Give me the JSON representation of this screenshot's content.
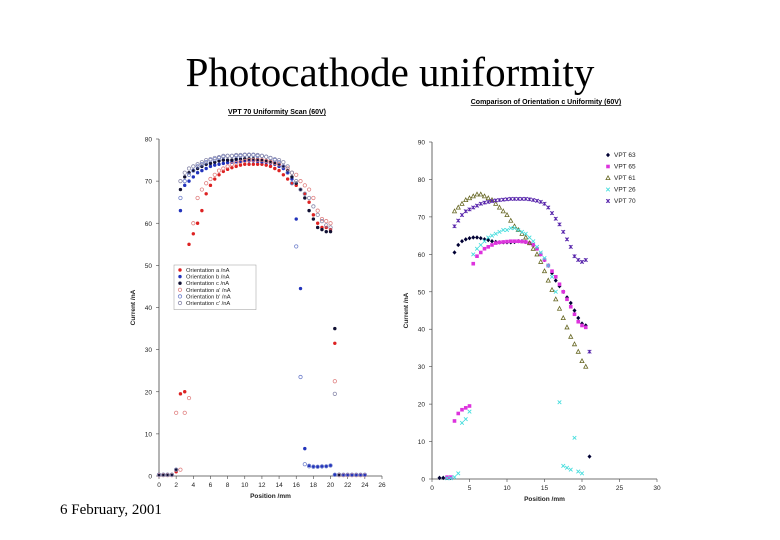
{
  "slide": {
    "title": "Photocathode uniformity",
    "date": "6 February, 2001"
  },
  "chart_data": [
    {
      "type": "scatter",
      "title": "VPT 70 Uniformity Scan (60V)",
      "xlabel": "Position /mm",
      "ylabel": "Current /nA",
      "xlim": [
        0,
        26
      ],
      "ylim": [
        0,
        80
      ],
      "xticks": [
        0,
        2,
        4,
        6,
        8,
        10,
        12,
        14,
        16,
        18,
        20,
        22,
        24,
        26
      ],
      "yticks": [
        0,
        10,
        20,
        30,
        40,
        50,
        60,
        70,
        80
      ],
      "grid": false,
      "legend_position": "middle-left",
      "series": [
        {
          "name": "Orientation a /nA",
          "color": "#dd2222",
          "marker": "dot",
          "x": [
            0,
            0.5,
            1,
            1.5,
            2,
            2.5,
            3,
            3.5,
            4,
            4.5,
            5,
            5.5,
            6,
            6.5,
            7,
            7.5,
            8,
            8.5,
            9,
            9.5,
            10,
            10.5,
            11,
            11.5,
            12,
            12.5,
            13,
            13.5,
            14,
            14.5,
            15,
            15.5,
            16,
            16.5,
            17,
            17.5,
            18,
            18.5,
            19,
            19.5,
            20,
            20.5,
            21,
            21.5,
            22,
            22.5,
            23,
            23.5,
            24
          ],
          "y": [
            0.3,
            0.3,
            0.3,
            0.3,
            1,
            19.5,
            20,
            55,
            57.5,
            60,
            63,
            67,
            69,
            70.5,
            71.5,
            72.3,
            72.8,
            73.2,
            73.5,
            73.8,
            74,
            74,
            74,
            74,
            74,
            73.8,
            73.5,
            73,
            72.5,
            71.5,
            70.5,
            69.5,
            69,
            68,
            67,
            65,
            62,
            60,
            59,
            59,
            58.5,
            31.5,
            0.2,
            0.2,
            0.2,
            0.2,
            0.2,
            0.2,
            0.2
          ]
        },
        {
          "name": "Orientation b /nA",
          "color": "#2233bb",
          "marker": "dot",
          "x": [
            0,
            0.5,
            1,
            1.5,
            2,
            2.5,
            3,
            3.5,
            4,
            4.5,
            5,
            5.5,
            6,
            6.5,
            7,
            7.5,
            8,
            8.5,
            9,
            9.5,
            10,
            10.5,
            11,
            11.5,
            12,
            12.5,
            13,
            13.5,
            14,
            14.5,
            15,
            15.5,
            16,
            16.5,
            17,
            17.5,
            18,
            18.5,
            19,
            19.5,
            20,
            20.5,
            21,
            21.5,
            22,
            22.5,
            23,
            23.5,
            24
          ],
          "y": [
            0.3,
            0.3,
            0.3,
            0.3,
            1.5,
            63,
            69,
            70,
            71,
            72,
            72.5,
            73,
            73.5,
            73.8,
            74,
            74.2,
            74.4,
            74.5,
            74.6,
            74.7,
            74.8,
            74.8,
            74.8,
            74.7,
            74.6,
            74.5,
            74.3,
            74,
            73.5,
            73,
            72,
            70.5,
            61,
            44.5,
            6.5,
            2.5,
            2.3,
            2.2,
            2.2,
            2.3,
            2.5,
            0.3,
            0.3,
            0.3,
            0.3,
            0.3,
            0.3,
            0.3,
            0.3
          ]
        },
        {
          "name": "Orientation c /nA",
          "color": "#111133",
          "marker": "dot",
          "x": [
            0,
            0.5,
            1,
            1.5,
            2,
            2.5,
            3,
            3.5,
            4,
            4.5,
            5,
            5.5,
            6,
            6.5,
            7,
            7.5,
            8,
            8.5,
            9,
            9.5,
            10,
            10.5,
            11,
            11.5,
            12,
            12.5,
            13,
            13.5,
            14,
            14.5,
            15,
            15.5,
            16,
            16.5,
            17,
            17.5,
            18,
            18.5,
            19,
            19.5,
            20,
            20.5,
            21
          ],
          "y": [
            0.3,
            0.3,
            0.3,
            0.3,
            1.5,
            68,
            71,
            72,
            72.5,
            73,
            73.5,
            74,
            74.2,
            74.5,
            74.8,
            75,
            75,
            75,
            75.2,
            75.2,
            75.3,
            75.3,
            75.3,
            75.2,
            75,
            74.8,
            74.5,
            74.2,
            74,
            73.5,
            72.5,
            71,
            69.5,
            68,
            66,
            63,
            61,
            59,
            58.5,
            58,
            58,
            35,
            0.3
          ]
        },
        {
          "name": "Orientation a' /nA",
          "color": "#e08080",
          "marker": "circle",
          "x": [
            0,
            0.5,
            1,
            1.5,
            2,
            2.5,
            3,
            3.5,
            4,
            4.5,
            5,
            5.5,
            6,
            6.5,
            7,
            7.5,
            8,
            8.5,
            9,
            9.5,
            10,
            10.5,
            11,
            11.5,
            12,
            12.5,
            13,
            13.5,
            14,
            14.5,
            15,
            15.5,
            16,
            16.5,
            17,
            17.5,
            18,
            18.5,
            19,
            19.5,
            20,
            20.5,
            21,
            21.5,
            22,
            22.5,
            23,
            23.5,
            24
          ],
          "y": [
            0.2,
            0.2,
            0.2,
            0.2,
            15,
            1.5,
            15,
            18.5,
            60,
            66,
            68,
            69.5,
            70.5,
            71.5,
            72.5,
            73,
            73.5,
            74,
            74.3,
            74.6,
            74.8,
            75,
            75,
            75,
            75,
            74.8,
            74.6,
            74.3,
            74,
            73.5,
            73,
            72,
            71.5,
            70,
            69,
            68,
            66,
            63,
            61,
            60.5,
            60,
            22.5,
            0.2,
            0.2,
            0.2,
            0.2,
            0.2,
            0.2,
            0.2
          ]
        },
        {
          "name": "Orientation b' /nA",
          "color": "#7080cc",
          "marker": "circle",
          "x": [
            0,
            0.5,
            1,
            1.5,
            2,
            2.5,
            3,
            3.5,
            4,
            4.5,
            5,
            5.5,
            6,
            6.5,
            7,
            7.5,
            8,
            8.5,
            9,
            9.5,
            10,
            10.5,
            11,
            11.5,
            12,
            12.5,
            13,
            13.5,
            14,
            14.5,
            15,
            15.5,
            16,
            16.5,
            17,
            17.5,
            18,
            18.5,
            19,
            19.5,
            20,
            20.5,
            21,
            21.5,
            22,
            22.5,
            23,
            23.5,
            24
          ],
          "y": [
            0.3,
            0.3,
            0.3,
            0.3,
            1.5,
            66,
            70,
            71.5,
            72.5,
            73.5,
            74,
            74.5,
            75,
            75.2,
            75.5,
            75.8,
            76,
            76,
            76,
            76,
            76.2,
            76.2,
            76.2,
            76,
            76,
            75.8,
            75.5,
            75,
            74.5,
            73.5,
            72,
            69.5,
            54.5,
            23.5,
            2.8,
            2.3,
            2.2,
            2.2,
            2.3,
            2.3,
            2.5,
            0.3,
            0.3,
            0.3,
            0.3,
            0.3,
            0.3,
            0.3,
            0.3
          ]
        },
        {
          "name": "Orientation c' /nA",
          "color": "#8888aa",
          "marker": "circle",
          "x": [
            0,
            0.5,
            1,
            1.5,
            2,
            2.5,
            3,
            3.5,
            4,
            4.5,
            5,
            5.5,
            6,
            6.5,
            7,
            7.5,
            8,
            8.5,
            9,
            9.5,
            10,
            10.5,
            11,
            11.5,
            12,
            12.5,
            13,
            13.5,
            14,
            14.5,
            15,
            15.5,
            16,
            16.5,
            17,
            17.5,
            18,
            18.5,
            19,
            19.5,
            20,
            20.5,
            21
          ],
          "y": [
            0.3,
            0.3,
            0.3,
            0.3,
            1.5,
            70,
            72,
            73,
            73.5,
            74,
            74.5,
            75,
            75.2,
            75.5,
            75.7,
            76,
            76,
            76,
            76.2,
            76.2,
            76.3,
            76.3,
            76.3,
            76.2,
            76,
            75.8,
            75.5,
            75.2,
            75,
            74.5,
            73.5,
            72,
            70,
            68,
            67,
            66,
            64,
            62,
            60.5,
            59.5,
            59,
            19.5,
            0.3
          ]
        }
      ]
    },
    {
      "type": "scatter",
      "title": "Comparison of Orientation c Uniformity (60V)",
      "xlabel": "Position /mm",
      "ylabel": "Current /nA",
      "xlim": [
        0,
        30
      ],
      "ylim": [
        0,
        90
      ],
      "xticks": [
        0,
        5,
        10,
        15,
        20,
        25,
        30
      ],
      "yticks": [
        0,
        10,
        20,
        30,
        40,
        50,
        60,
        70,
        80,
        90
      ],
      "grid": false,
      "legend_position": "top-right",
      "series": [
        {
          "name": "VPT 63",
          "color": "#000033",
          "marker": "diamond",
          "x": [
            1,
            1.5,
            2,
            2.5,
            3,
            3.5,
            4,
            4.5,
            5,
            5.5,
            6,
            6.5,
            7,
            7.5,
            8,
            8.5,
            9,
            9.5,
            10,
            10.5,
            11,
            11.5,
            12,
            12.5,
            13,
            13.5,
            14,
            14.5,
            15,
            15.5,
            16,
            16.5,
            17,
            17.5,
            18,
            18.5,
            19,
            19.5,
            20,
            20.5,
            21
          ],
          "y": [
            0.3,
            0.3,
            0.3,
            0.3,
            60.5,
            62.5,
            63.5,
            64,
            64.3,
            64.5,
            64.5,
            64.3,
            64,
            63.8,
            63.5,
            63.3,
            63.2,
            63.2,
            63.2,
            63.2,
            63.3,
            63.5,
            63.5,
            63.3,
            63,
            62.5,
            61.5,
            60,
            58.5,
            57,
            55,
            53,
            51.5,
            50,
            48.5,
            47,
            45,
            43,
            41.5,
            41,
            6
          ]
        },
        {
          "name": "VPT 65",
          "color": "#dd33dd",
          "marker": "square",
          "x": [
            2,
            2.5,
            3,
            3.5,
            4,
            4.5,
            5,
            5.5,
            6,
            6.5,
            7,
            7.5,
            8,
            8.5,
            9,
            9.5,
            10,
            10.5,
            11,
            11.5,
            12,
            12.5,
            13,
            13.5,
            14,
            14.5,
            15,
            15.5,
            16,
            16.5,
            17,
            17.5,
            18,
            18.5,
            19,
            19.5,
            20,
            20.5
          ],
          "y": [
            0.5,
            0.5,
            15.5,
            17.5,
            18.5,
            19,
            19.5,
            57.5,
            59.5,
            60.5,
            61.5,
            62,
            62.5,
            63,
            63.2,
            63.3,
            63.4,
            63.5,
            63.5,
            63.5,
            63.4,
            63.3,
            63,
            62.5,
            61.5,
            60,
            58.5,
            57,
            55.5,
            54,
            52,
            50,
            48,
            46,
            44,
            42,
            41,
            40.5
          ]
        },
        {
          "name": "VPT 61",
          "color": "#666622",
          "marker": "triangle",
          "x": [
            3,
            3.5,
            4,
            4.5,
            5,
            5.5,
            6,
            6.5,
            7,
            7.5,
            8,
            8.5,
            9,
            9.5,
            10,
            10.5,
            11,
            11.5,
            12,
            12.5,
            13,
            13.5,
            14,
            14.5,
            15,
            15.5,
            16,
            16.5,
            17,
            17.5,
            18,
            18.5,
            19,
            19.5,
            20,
            20.5
          ],
          "y": [
            71.5,
            72.5,
            73.5,
            74.5,
            75,
            75.5,
            76,
            76,
            75.5,
            75,
            74.5,
            73.5,
            72.5,
            71.5,
            70.5,
            69,
            67.5,
            66.5,
            65.5,
            64.5,
            63,
            61.5,
            60,
            58,
            55.5,
            53,
            50.5,
            48,
            45.5,
            43,
            40.5,
            38,
            36,
            34,
            31.5,
            30
          ]
        },
        {
          "name": "VPT 26",
          "color": "#44dddd",
          "marker": "x",
          "x": [
            2,
            2.5,
            3,
            3.5,
            4,
            4.5,
            5,
            5.5,
            6,
            6.5,
            7,
            7.5,
            8,
            8.5,
            9,
            9.5,
            10,
            10.5,
            11,
            11.5,
            12,
            12.5,
            13,
            13.5,
            14,
            14.5,
            15,
            15.5,
            16,
            16.5,
            17,
            17.5,
            18,
            18.5,
            19,
            19.5,
            20
          ],
          "y": [
            0.2,
            0.2,
            0.5,
            1.5,
            15,
            16,
            18,
            60,
            61.5,
            62.5,
            63.5,
            64.5,
            65,
            65.5,
            66,
            66.5,
            66.5,
            67,
            67,
            66.5,
            66,
            65.5,
            64.5,
            63.5,
            62,
            60.5,
            59,
            57,
            54,
            50,
            20.5,
            3.5,
            3,
            2.5,
            11,
            2,
            1.5
          ]
        },
        {
          "name": "VPT 70",
          "color": "#5522aa",
          "marker": "cross",
          "x": [
            3,
            3.5,
            4,
            4.5,
            5,
            5.5,
            6,
            6.5,
            7,
            7.5,
            8,
            8.5,
            9,
            9.5,
            10,
            10.5,
            11,
            11.5,
            12,
            12.5,
            13,
            13.5,
            14,
            14.5,
            15,
            15.5,
            16,
            16.5,
            17,
            17.5,
            18,
            18.5,
            19,
            19.5,
            20,
            20.5,
            21
          ],
          "y": [
            67.5,
            69,
            70.5,
            71.5,
            72,
            72.5,
            73,
            73.5,
            73.8,
            74,
            74.2,
            74.4,
            74.5,
            74.6,
            74.7,
            74.8,
            74.8,
            74.8,
            74.8,
            74.8,
            74.7,
            74.5,
            74.3,
            74,
            73.5,
            72.5,
            71,
            69.5,
            68,
            66,
            64,
            62,
            59.5,
            58.5,
            58,
            58.5,
            34
          ]
        }
      ]
    }
  ]
}
